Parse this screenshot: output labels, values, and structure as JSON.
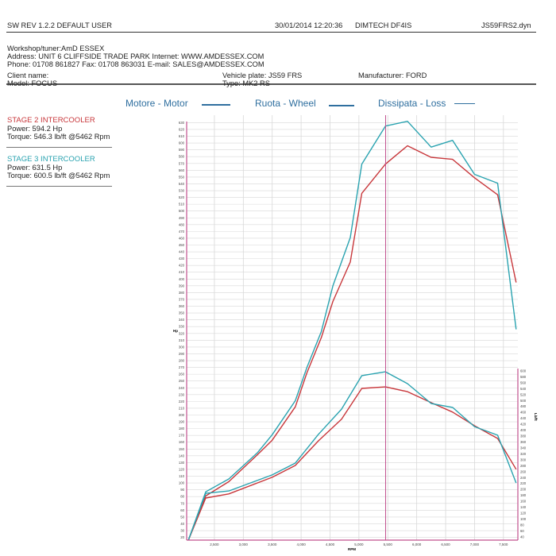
{
  "header": {
    "software": "SW REV 1.2.2  DEFAULT USER",
    "datetime": "30/01/2014 12:20:36",
    "dyno": "DIMTECH DF4IS",
    "file": "JS59FRS2.dyn"
  },
  "workshop": {
    "line1": "Workshop/tuner:AmD ESSEX",
    "line2": "Address: UNIT 6 CLIFFSIDE TRADE PARK Internet: WWW.AMDESSEX.COM",
    "line3": "Phone: 01708 861827 Fax: 01708 863031 E-mail: SALES@AMDESSEX.COM"
  },
  "vehicle": {
    "client": "Client name:",
    "model": "Model: FOCUS",
    "plate": "Vehicle plate: JS59 FRS",
    "type": "Type: MK2 RS",
    "manufacturer": "Manufacturer: FORD"
  },
  "legend": {
    "motor": "Motore - Motor",
    "wheel": "Ruota - Wheel",
    "loss": "Dissipata - Loss"
  },
  "runs": [
    {
      "title": "STAGE 2 INTERCOOLER",
      "power": "Power: 594.2 Hp",
      "torque": "Torque: 546.3 lb/ft @5462 Rpm",
      "color": "#c8373b"
    },
    {
      "title": "STAGE 3 INTERCOOLER",
      "power": "Power: 631.5 Hp",
      "torque": "Torque: 600.5 lb/ft @5462 Rpm",
      "color": "#2aa3b0"
    }
  ],
  "colors": {
    "axis": "#c2508e",
    "grid": "#d8d8d8",
    "legend": "#2f6f9f"
  },
  "chart_data": {
    "type": "line",
    "xlabel": "RPM",
    "ylabel": "Hp",
    "y2label": "Lb/ft",
    "xlim": [
      2020,
      7750
    ],
    "ylim": [
      16,
      641
    ],
    "y2lim": [
      29,
      1463
    ],
    "xticks": [
      2500,
      3000,
      3500,
      4000,
      4500,
      5000,
      5500,
      6000,
      6500,
      7000,
      7500
    ],
    "xtick_labels": [
      "2,500",
      "3,000",
      "3,500",
      "4,000",
      "4,500",
      "5,000",
      "5,500",
      "6,000",
      "6,500",
      "7,000",
      "7,500"
    ],
    "yticks": {
      "start": 20,
      "end": 630,
      "step": 10
    },
    "y2ticks": {
      "start": 40,
      "end": 600,
      "step": 20
    },
    "marker_rpm": 5462,
    "grid": true,
    "series": [
      {
        "name": "STAGE 2 INTERCOOLER",
        "quantity": "power",
        "axis": "left",
        "color": "#c8373b",
        "x": [
          2050,
          2350,
          2750,
          3250,
          3500,
          3900,
          4100,
          4350,
          4550,
          4850,
          5050,
          5460,
          5840,
          6250,
          6620,
          7000,
          7400,
          7720
        ],
        "y": [
          16,
          81,
          102,
          142,
          163,
          212,
          262,
          314,
          367,
          425,
          526,
          569,
          596,
          579,
          576,
          549,
          524,
          395
        ]
      },
      {
        "name": "STAGE 3 INTERCOOLER",
        "quantity": "power",
        "axis": "left",
        "color": "#2aa3b0",
        "x": [
          2050,
          2350,
          2750,
          3250,
          3500,
          3900,
          4100,
          4350,
          4550,
          4850,
          5050,
          5460,
          5840,
          6250,
          6620,
          7000,
          7400,
          7720
        ],
        "y": [
          16,
          87,
          106,
          145,
          171,
          221,
          270,
          323,
          390,
          461,
          569,
          625,
          632,
          594,
          604,
          554,
          541,
          326
        ]
      },
      {
        "name": "STAGE 2 INTERCOOLER",
        "quantity": "torque",
        "axis": "right",
        "color": "#c8373b",
        "x": [
          2050,
          2350,
          2750,
          3500,
          3900,
          4300,
          4700,
          5050,
          5460,
          5840,
          6250,
          6620,
          7000,
          7400,
          7720
        ],
        "y": [
          29,
          171,
          185,
          241,
          281,
          364,
          437,
          541,
          546,
          530,
          493,
          461,
          415,
          372,
          268
        ]
      },
      {
        "name": "STAGE 3 INTERCOOLER",
        "quantity": "torque",
        "axis": "right",
        "color": "#2aa3b0",
        "x": [
          2050,
          2350,
          2750,
          3500,
          3900,
          4300,
          4700,
          5050,
          5460,
          5840,
          6250,
          6620,
          7000,
          7400,
          7720
        ],
        "y": [
          29,
          187,
          195,
          249,
          289,
          386,
          471,
          584,
          597,
          557,
          490,
          477,
          412,
          383,
          222
        ]
      }
    ]
  }
}
